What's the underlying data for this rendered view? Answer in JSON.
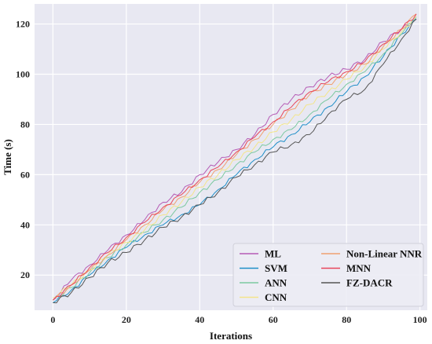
{
  "chart_data": {
    "type": "line",
    "xlabel": "Iterations",
    "ylabel": "Time (s)",
    "xlim": [
      -5,
      102
    ],
    "ylim": [
      6,
      128
    ],
    "xticks": [
      0,
      20,
      40,
      60,
      80,
      100
    ],
    "yticks": [
      20,
      40,
      60,
      80,
      100,
      120
    ],
    "grid": true,
    "legend_position": "bottom-right",
    "legend_columns": 2,
    "x": [
      0,
      5,
      10,
      15,
      20,
      25,
      30,
      35,
      40,
      45,
      50,
      55,
      60,
      65,
      70,
      75,
      80,
      85,
      90,
      95,
      99
    ],
    "series": [
      {
        "name": "ML",
        "color": "#b55bb5",
        "values": [
          10,
          18,
          24,
          30,
          36,
          42,
          49,
          53,
          60,
          65,
          70,
          76,
          84,
          90,
          95,
          99,
          102,
          106,
          113,
          118,
          122
        ]
      },
      {
        "name": "SVM",
        "color": "#1f8fc8",
        "values": [
          9,
          14,
          20,
          26,
          31,
          36,
          40,
          44,
          48,
          54,
          60,
          66,
          71,
          76,
          81,
          87,
          93,
          99,
          107,
          116,
          122
        ]
      },
      {
        "name": "ANN",
        "color": "#7cc9a0",
        "values": [
          10,
          15,
          21,
          27,
          32,
          37,
          42,
          47,
          53,
          58,
          64,
          69,
          74,
          78,
          84,
          90,
          96,
          101,
          108,
          116,
          123
        ]
      },
      {
        "name": "CNN",
        "color": "#f3e58a",
        "values": [
          11,
          16,
          22,
          28,
          33,
          38,
          44,
          49,
          55,
          60,
          66,
          71,
          77,
          82,
          88,
          93,
          98,
          103,
          110,
          117,
          123
        ]
      },
      {
        "name": "Non-Linear NNR",
        "color": "#f0a070",
        "values": [
          10,
          16,
          22,
          28,
          34,
          40,
          46,
          51,
          57,
          62,
          68,
          74,
          80,
          86,
          92,
          96,
          100,
          104,
          111,
          118,
          124
        ]
      },
      {
        "name": "MNN",
        "color": "#e8465a",
        "values": [
          10,
          16,
          23,
          29,
          35,
          41,
          47,
          52,
          58,
          63,
          69,
          75,
          81,
          87,
          93,
          97,
          101,
          105,
          112,
          118,
          124
        ]
      },
      {
        "name": "FZ-DACR",
        "color": "#555555",
        "values": [
          9,
          13,
          19,
          25,
          29,
          34,
          39,
          43,
          48,
          53,
          59,
          64,
          69,
          72,
          76,
          84,
          90,
          94,
          104,
          114,
          122
        ]
      }
    ]
  }
}
